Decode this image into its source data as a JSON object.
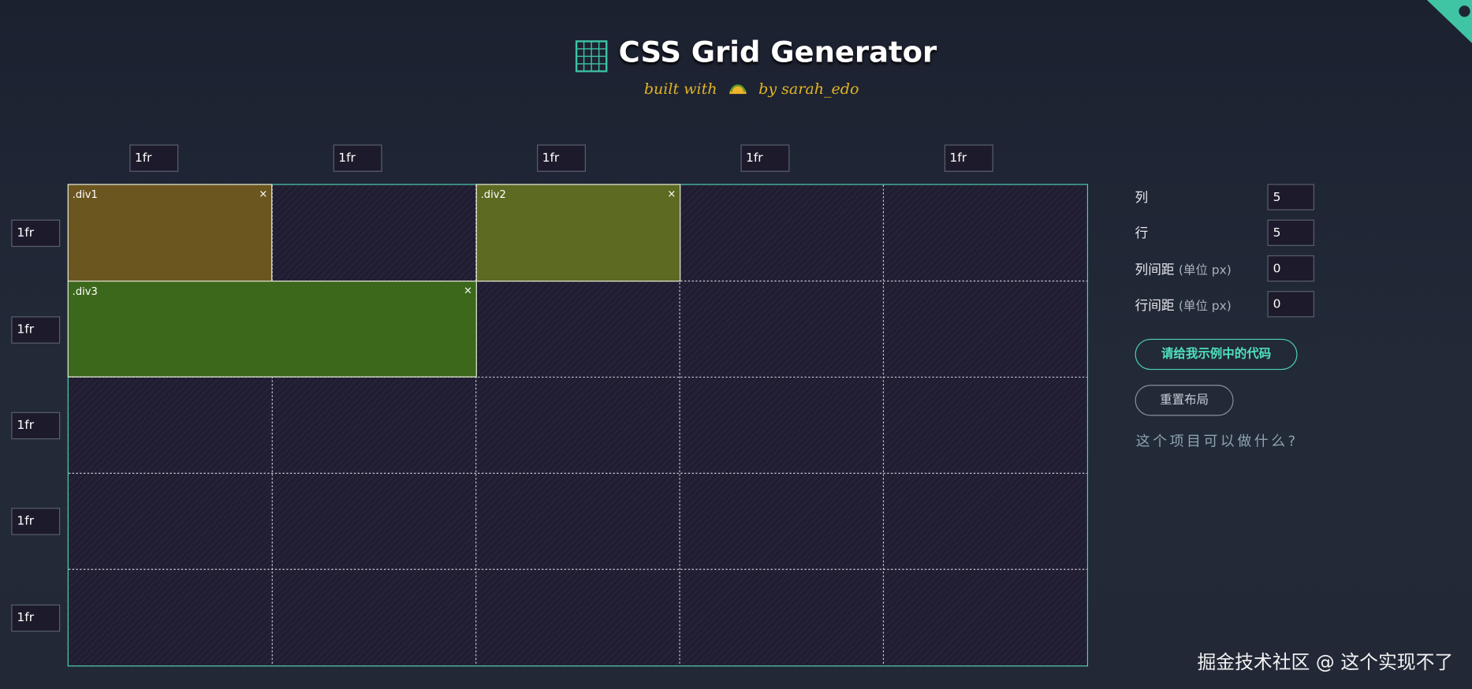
{
  "header": {
    "title": "CSS Grid Generator",
    "subtitle_before": "built with",
    "subtitle_after": "by sarah_edo"
  },
  "grid": {
    "column_sizes": [
      "1fr",
      "1fr",
      "1fr",
      "1fr",
      "1fr"
    ],
    "row_sizes": [
      "1fr",
      "1fr",
      "1fr",
      "1fr",
      "1fr"
    ],
    "items": [
      {
        "label": ".div1",
        "close": "×"
      },
      {
        "label": ".div2",
        "close": "×"
      },
      {
        "label": ".div3",
        "close": "×"
      }
    ]
  },
  "controls": {
    "columns_label": "列",
    "columns_value": 5,
    "rows_label": "行",
    "rows_value": 5,
    "column_gap_label": "列间距",
    "column_gap_unit": "(单位 px)",
    "column_gap_value": 0,
    "row_gap_label": "行间距",
    "row_gap_unit": "(单位 px)",
    "row_gap_value": 0,
    "code_button": "请给我示例中的代码",
    "reset_button": "重置布局",
    "about_link": "这个项目可以做什么?"
  },
  "watermark": "掘金技术社区 @ 这个实现不了"
}
